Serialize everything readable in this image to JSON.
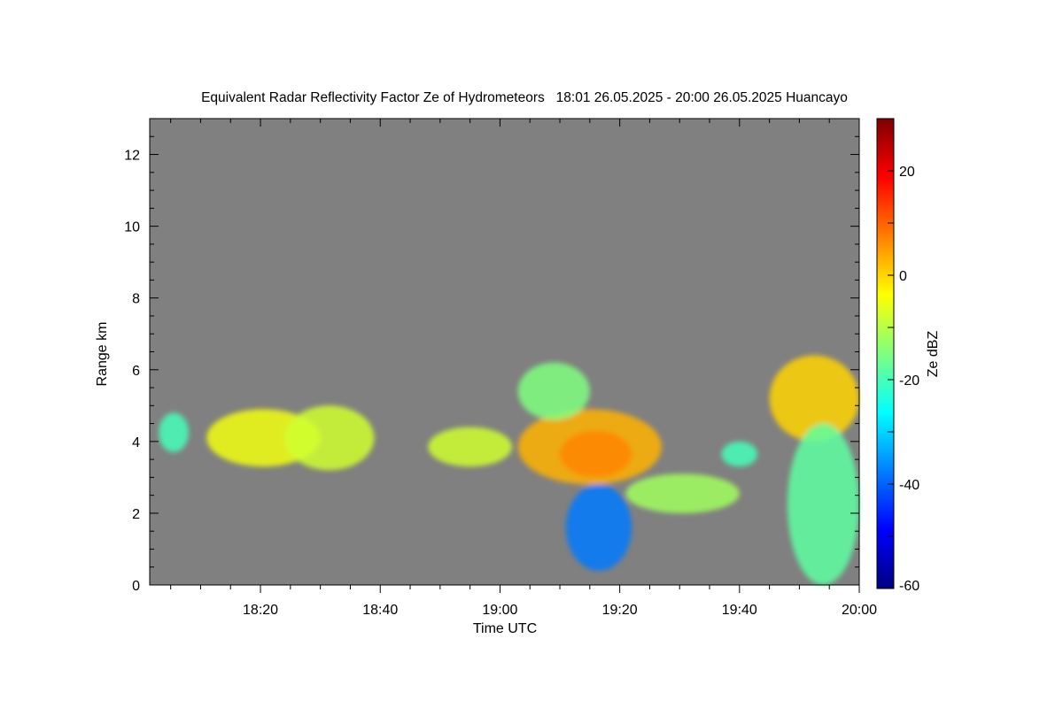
{
  "chart_data": {
    "type": "heatmap",
    "title": "Equivalent Radar Reflectivity Factor Ze of Hydrometeors   18:01 26.05.2025 - 20:00 26.05.2025 Huancayo",
    "xlabel": "Time UTC",
    "ylabel": "Range km",
    "x_ticks": [
      "18:20",
      "18:40",
      "19:00",
      "19:20",
      "19:40",
      "20:00"
    ],
    "x_tick_minutes": [
      20,
      40,
      60,
      80,
      100,
      120
    ],
    "xlim_minutes": [
      1.5,
      120
    ],
    "y_ticks": [
      0,
      2,
      4,
      6,
      8,
      10,
      12
    ],
    "ylim": [
      0,
      13
    ],
    "background_color": "#808080",
    "colorbar": {
      "label": "Ze dBZ",
      "ticks": [
        20,
        0,
        -20,
        -40,
        -60
      ],
      "range": [
        -60,
        30
      ],
      "colormap": [
        "#00007f",
        "#0000ff",
        "#007fff",
        "#00ffff",
        "#7fff7f",
        "#ffff00",
        "#ff7f00",
        "#ff0000",
        "#7f0000"
      ]
    },
    "echoes": [
      {
        "name": "early-thin-layer",
        "t": [
          3,
          8
        ],
        "z": [
          3.7,
          4.8
        ],
        "ze": -20
      },
      {
        "name": "layer-1820",
        "t": [
          11,
          30
        ],
        "z": [
          3.3,
          4.9
        ],
        "ze": -5
      },
      {
        "name": "layer-1830",
        "t": [
          24,
          39
        ],
        "z": [
          3.2,
          5.0
        ],
        "ze": -8
      },
      {
        "name": "layer-1850",
        "t": [
          48,
          62
        ],
        "z": [
          3.3,
          4.4
        ],
        "ze": -8
      },
      {
        "name": "main-core",
        "t": [
          63,
          87
        ],
        "z": [
          2.8,
          4.9
        ],
        "ze": 3
      },
      {
        "name": "dense-core",
        "t": [
          70,
          82
        ],
        "z": [
          3.0,
          4.3
        ],
        "ze": 7
      },
      {
        "name": "upper-plume",
        "t": [
          63,
          75
        ],
        "z": [
          4.6,
          6.2
        ],
        "ze": -15
      },
      {
        "name": "lower-tail",
        "t": [
          81,
          100
        ],
        "z": [
          2.0,
          3.1
        ],
        "ze": -12
      },
      {
        "name": "precip-streaks",
        "t": [
          71,
          82
        ],
        "z": [
          0.4,
          2.8
        ],
        "ze": -38
      },
      {
        "name": "late-cell",
        "t": [
          105,
          120
        ],
        "z": [
          4.0,
          6.4
        ],
        "ze": 0
      },
      {
        "name": "late-fallstreaks",
        "t": [
          108,
          120
        ],
        "z": [
          0.0,
          4.5
        ],
        "ze": -18
      },
      {
        "name": "small-pieces",
        "t": [
          97,
          103
        ],
        "z": [
          3.3,
          4.0
        ],
        "ze": -20
      }
    ]
  }
}
